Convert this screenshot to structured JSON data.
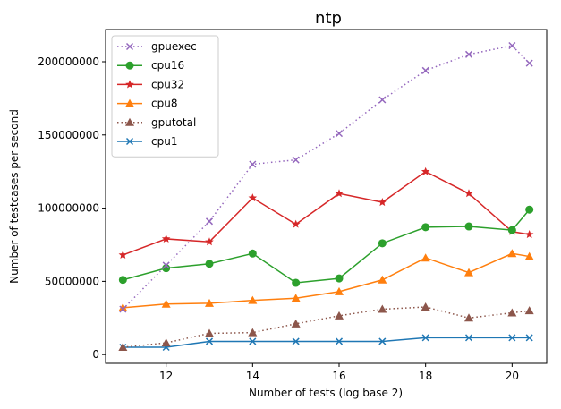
{
  "chart_data": {
    "type": "line",
    "title": "ntp",
    "xlabel": "Number of tests (log base 2)",
    "ylabel": "Number of testcases per second",
    "xlim": [
      10.6,
      20.8
    ],
    "ylim": [
      -6000000,
      222000000
    ],
    "x_ticks": [
      12,
      14,
      16,
      18,
      20
    ],
    "y_ticks": [
      0,
      50000000,
      100000000,
      150000000,
      200000000
    ],
    "x_tick_labels": [
      "12",
      "14",
      "16",
      "18",
      "20"
    ],
    "y_tick_labels": [
      "0",
      "50000000",
      "100000000",
      "150000000",
      "200000000"
    ],
    "grid": false,
    "legend_position": "top-left",
    "x": [
      11,
      12,
      13,
      14,
      15,
      16,
      17,
      18,
      19,
      20,
      20.4
    ],
    "series": [
      {
        "name": "gpuexec",
        "color": "#9467bd",
        "marker": "x",
        "linestyle": "dotted",
        "values": [
          31000000,
          61000000,
          91000000,
          130000000,
          133000000,
          151000000,
          174000000,
          194000000,
          205000000,
          211000000,
          199000000
        ]
      },
      {
        "name": "cpu16",
        "color": "#2ca02c",
        "marker": "circle",
        "linestyle": "solid",
        "values": [
          51000000,
          59000000,
          62000000,
          69000000,
          49000000,
          52000000,
          76000000,
          87000000,
          87500000,
          85000000,
          99000000
        ]
      },
      {
        "name": "cpu32",
        "color": "#d62728",
        "marker": "star",
        "linestyle": "solid",
        "values": [
          68000000,
          79000000,
          77000000,
          107000000,
          89000000,
          110000000,
          104000000,
          125000000,
          110000000,
          84000000,
          82000000
        ]
      },
      {
        "name": "cpu8",
        "color": "#ff7f0e",
        "marker": "triangle",
        "linestyle": "solid",
        "values": [
          32000000,
          34500000,
          35000000,
          37000000,
          38500000,
          43000000,
          51000000,
          66000000,
          56000000,
          69000000,
          67000000
        ]
      },
      {
        "name": "gputotal",
        "color": "#8c564b",
        "marker": "triangle",
        "linestyle": "dotted",
        "values": [
          5000000,
          8000000,
          14500000,
          15000000,
          21000000,
          26500000,
          31000000,
          32500000,
          25000000,
          28500000,
          30000000
        ]
      },
      {
        "name": "cpu1",
        "color": "#1f77b4",
        "marker": "x",
        "linestyle": "solid",
        "values": [
          5000000,
          5000000,
          9000000,
          9000000,
          9000000,
          9000000,
          9000000,
          11500000,
          11500000,
          11500000,
          11500000
        ]
      }
    ]
  }
}
